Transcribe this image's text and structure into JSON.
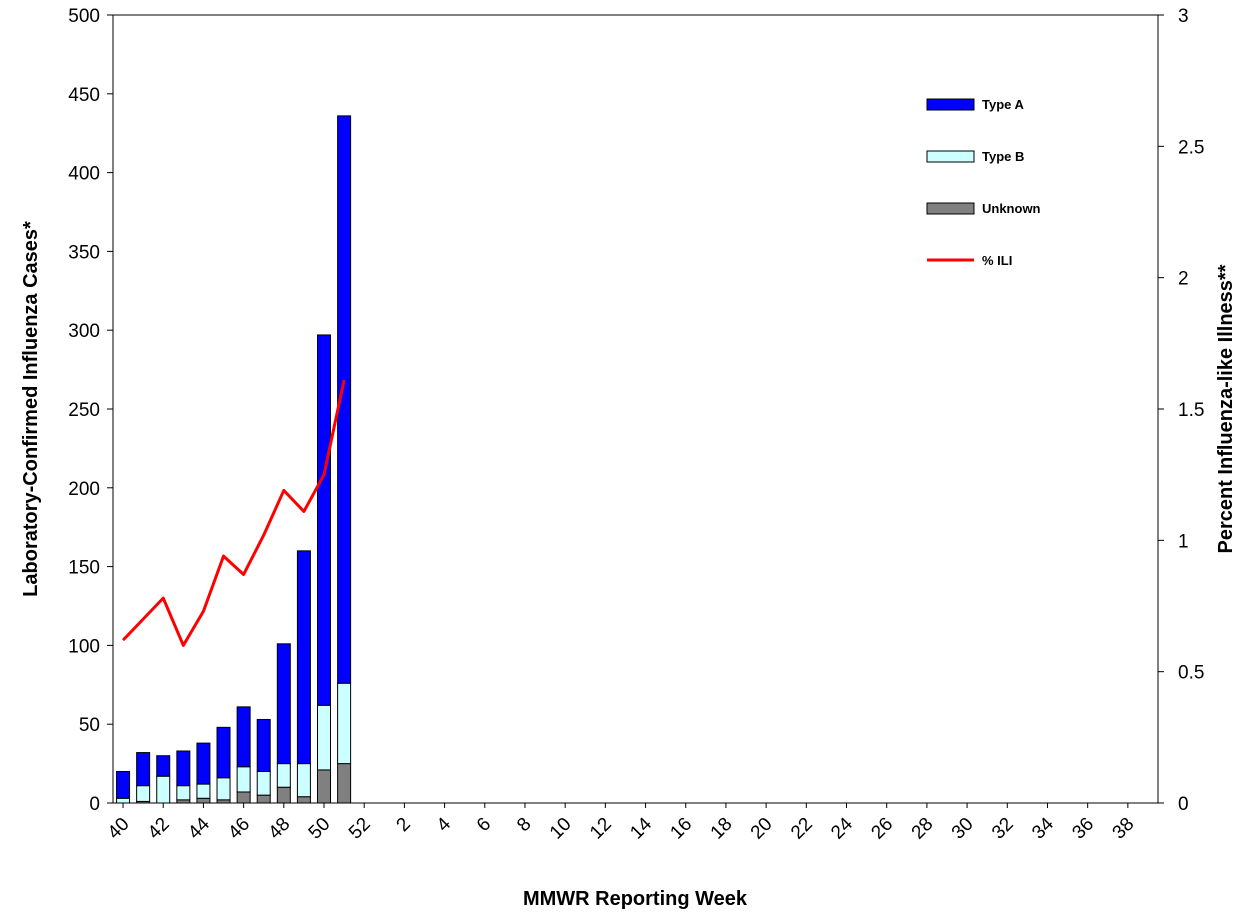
{
  "chart_data": {
    "type": "bar",
    "title": "",
    "xlabel": "MMWR Reporting Week",
    "ylabel": "Laboratory-Confirmed Influenza Cases*",
    "y2label": "Percent Influenza-like Illness**",
    "ylim": [
      0,
      500
    ],
    "y2lim": [
      0,
      3
    ],
    "yticks": [
      "0",
      "50",
      "100",
      "150",
      "200",
      "250",
      "300",
      "350",
      "400",
      "450",
      "500"
    ],
    "y2ticks": [
      "0",
      "0.5",
      "1",
      "1.5",
      "2",
      "2.5",
      "3"
    ],
    "x_tick_labels": [
      "40",
      "42",
      "44",
      "46",
      "48",
      "50",
      "52",
      "2",
      "4",
      "6",
      "8",
      "10",
      "12",
      "14",
      "16",
      "18",
      "20",
      "22",
      "24",
      "26",
      "28",
      "30",
      "32",
      "34",
      "36",
      "38"
    ],
    "weeks": [
      "40",
      "41",
      "42",
      "43",
      "44",
      "45",
      "46",
      "47",
      "48",
      "49",
      "50",
      "51",
      "52",
      "1",
      "2",
      "3",
      "4",
      "5",
      "6",
      "7",
      "8",
      "9",
      "10",
      "11",
      "12",
      "13",
      "14",
      "15",
      "16",
      "17",
      "18",
      "19",
      "20",
      "21",
      "22",
      "23",
      "24",
      "25",
      "26",
      "27",
      "28",
      "29",
      "30",
      "31",
      "32",
      "33",
      "34",
      "35",
      "36",
      "37",
      "38",
      "39"
    ],
    "stacked": true,
    "series": [
      {
        "name": "Unknown",
        "color": "#808080",
        "values": [
          0,
          1,
          0,
          2,
          3,
          2,
          7,
          5,
          10,
          4,
          21,
          25
        ]
      },
      {
        "name": "Type B",
        "color": "#ccffff",
        "values": [
          3,
          10,
          17,
          9,
          9,
          14,
          16,
          15,
          15,
          21,
          41,
          51
        ]
      },
      {
        "name": "Type A",
        "color": "#0000ff",
        "values": [
          17,
          21,
          13,
          22,
          26,
          32,
          38,
          33,
          76,
          135,
          235,
          360
        ]
      }
    ],
    "line_series": {
      "name": "% ILI",
      "color": "#ff0000",
      "axis": "right",
      "values": [
        0.62,
        0.7,
        0.78,
        0.6,
        0.73,
        0.94,
        0.87,
        1.02,
        1.19,
        1.11,
        1.25,
        1.61
      ]
    },
    "legend": [
      "Type A",
      "Type B",
      "Unknown",
      "% ILI"
    ],
    "legend_position": "top-right",
    "grid": false
  }
}
